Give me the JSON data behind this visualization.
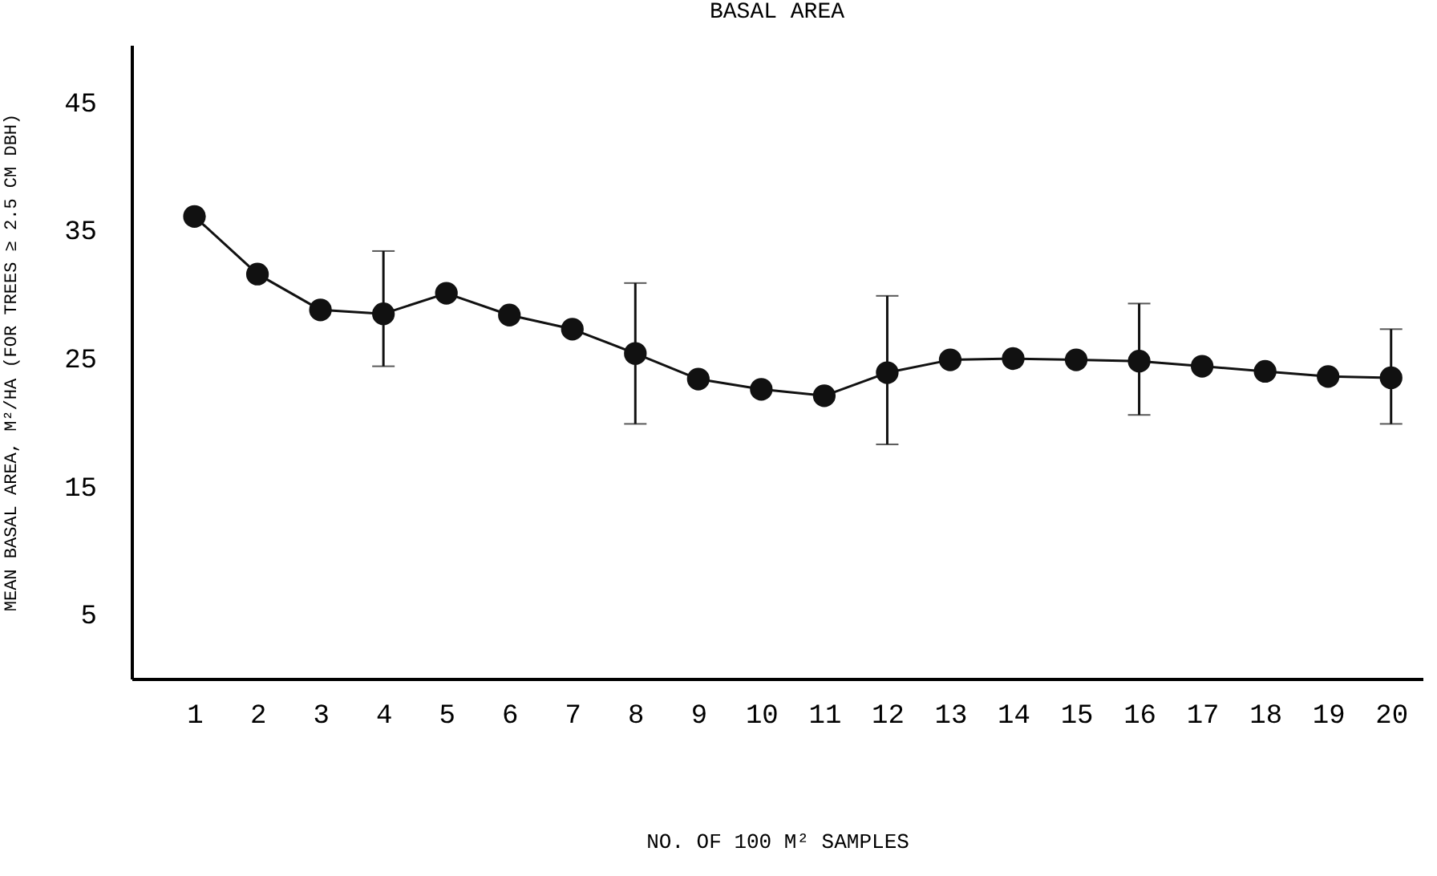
{
  "chart_data": {
    "type": "line",
    "title": "BASAL AREA",
    "xlabel": "NO. OF 100 M² SAMPLES",
    "ylabel": "MEAN BASAL AREA, M²/HA  (FOR TREES ≥ 2.5 CM DBH)",
    "x": [
      1,
      2,
      3,
      4,
      5,
      6,
      7,
      8,
      9,
      10,
      11,
      12,
      13,
      14,
      15,
      16,
      17,
      18,
      19,
      20
    ],
    "values": [
      36.1,
      31.6,
      28.8,
      28.5,
      30.1,
      28.4,
      27.3,
      25.4,
      23.4,
      22.6,
      22.1,
      23.9,
      24.9,
      25,
      24.9,
      24.8,
      24.4,
      24,
      23.6,
      23.5
    ],
    "errors": [
      null,
      null,
      null,
      [
        24.4,
        33.4
      ],
      null,
      null,
      null,
      [
        19.9,
        30.9
      ],
      null,
      null,
      null,
      [
        18.3,
        29.9
      ],
      null,
      null,
      null,
      [
        20.6,
        29.3
      ],
      null,
      null,
      null,
      [
        19.9,
        27.3
      ]
    ],
    "color": "#111111",
    "marker": "circle",
    "line_style": "solid",
    "grid": false,
    "xlim": [
      0,
      20.5
    ],
    "xticks": [
      1,
      2,
      3,
      4,
      5,
      6,
      7,
      8,
      9,
      10,
      11,
      12,
      13,
      14,
      15,
      16,
      17,
      18,
      19,
      20
    ],
    "ylim": [
      0,
      49.5
    ],
    "yticks": [
      5,
      15,
      25,
      35,
      45
    ]
  }
}
